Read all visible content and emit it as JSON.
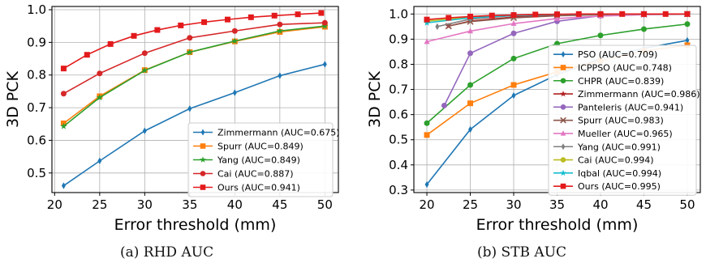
{
  "captions": [
    "(a)  RHD AUC",
    "(b)  STB AUC"
  ],
  "chart_data": [
    {
      "type": "line",
      "xlabel": "Error threshold (mm)",
      "ylabel": "3D PCK",
      "xlim": [
        19.7,
        51.5
      ],
      "ylim": [
        0.44,
        1.01
      ],
      "x_ticks": [
        20,
        25,
        30,
        35,
        40,
        45,
        50
      ],
      "y_ticks": [
        0.5,
        0.6,
        0.7,
        0.8,
        0.9,
        1.0
      ],
      "y_tick_labels": [
        "0.5",
        "0.6",
        "0.7",
        "0.8",
        "0.9",
        "1.0"
      ],
      "grid": true,
      "legend_position": "lower-right",
      "series": [
        {
          "name": "Zimmermann (AUC=0.675)",
          "color": "#1f77b4",
          "marker": "thin_diamond",
          "x": [
            21,
            25,
            30,
            35,
            40,
            45,
            50
          ],
          "y": [
            0.461,
            0.537,
            0.629,
            0.697,
            0.746,
            0.798,
            0.833
          ]
        },
        {
          "name": "Spurr (AUC=0.849)",
          "color": "#ff7f0e",
          "marker": "square",
          "x": [
            21,
            25,
            30,
            35,
            40,
            45,
            50
          ],
          "y": [
            0.652,
            0.735,
            0.815,
            0.87,
            0.903,
            0.932,
            0.948
          ]
        },
        {
          "name": "Yang (AUC=0.849)",
          "color": "#2ca02c",
          "marker": "star",
          "x": [
            21,
            25,
            30,
            35,
            40,
            45,
            50
          ],
          "y": [
            0.643,
            0.731,
            0.814,
            0.87,
            0.904,
            0.935,
            0.95
          ]
        },
        {
          "name": "Cai (AUC=0.887)",
          "color": "#d62728",
          "marker": "circle",
          "x": [
            21,
            25,
            30,
            35,
            40,
            45,
            50
          ],
          "y": [
            0.743,
            0.805,
            0.867,
            0.914,
            0.935,
            0.955,
            0.96
          ]
        },
        {
          "name": "Ours (AUC=0.941)",
          "color": "#e31a1c",
          "marker": "square",
          "x": [
            21,
            23.6,
            26.2,
            28.8,
            31.4,
            34,
            36.6,
            39.2,
            41.8,
            44.4,
            47,
            49.6
          ],
          "y": [
            0.82,
            0.862,
            0.895,
            0.92,
            0.938,
            0.952,
            0.962,
            0.97,
            0.977,
            0.982,
            0.986,
            0.99
          ]
        }
      ]
    },
    {
      "type": "line",
      "xlabel": "Error threshold (mm)",
      "ylabel": "3D PCK",
      "xlim": [
        18.5,
        51.5
      ],
      "ylim": [
        0.29,
        1.03
      ],
      "x_ticks": [
        20,
        25,
        30,
        35,
        40,
        45,
        50
      ],
      "y_ticks": [
        0.3,
        0.4,
        0.5,
        0.6,
        0.7,
        0.8,
        0.9,
        1.0
      ],
      "y_tick_labels": [
        "0.3",
        "0.4",
        "0.5",
        "0.6",
        "0.7",
        "0.8",
        "0.9",
        "1.0"
      ],
      "grid": true,
      "legend_position": "lower-right",
      "series": [
        {
          "name": "PSO (AUC=0.709)",
          "color": "#1f77b4",
          "marker": "thin_diamond",
          "x": [
            20,
            25,
            30,
            35,
            40,
            45,
            50
          ],
          "y": [
            0.322,
            0.541,
            0.676,
            0.759,
            0.823,
            0.864,
            0.895
          ]
        },
        {
          "name": "ICPPSO (AUC=0.748)",
          "color": "#ff7f0e",
          "marker": "square",
          "x": [
            20,
            25,
            30,
            35,
            40,
            45,
            50
          ],
          "y": [
            0.519,
            0.645,
            0.718,
            0.77,
            0.815,
            0.853,
            0.876
          ]
        },
        {
          "name": "CHPR (AUC=0.839)",
          "color": "#2ca02c",
          "marker": "circle",
          "x": [
            20,
            25,
            30,
            35,
            40,
            45,
            50
          ],
          "y": [
            0.566,
            0.718,
            0.823,
            0.882,
            0.915,
            0.94,
            0.96
          ]
        },
        {
          "name": "Zimmermann (AUC=0.986)",
          "color": "#b22222",
          "marker": "star",
          "x": [
            22.5,
            25,
            30,
            35,
            40,
            45,
            50
          ],
          "y": [
            0.952,
            0.972,
            0.988,
            0.995,
            0.998,
            0.999,
            1.0
          ]
        },
        {
          "name": "Panteleris (AUC=0.941)",
          "color": "#9467bd",
          "marker": "circle",
          "x": [
            22,
            25,
            30,
            35,
            40,
            45,
            50
          ],
          "y": [
            0.636,
            0.844,
            0.923,
            0.971,
            0.993,
            0.998,
            1.0
          ]
        },
        {
          "name": "Spurr (AUC=0.983)",
          "color": "#8c564b",
          "marker": "x",
          "x": [
            22.5,
            25,
            30,
            35,
            40,
            45,
            50
          ],
          "y": [
            0.952,
            0.97,
            0.985,
            0.993,
            0.997,
            0.999,
            1.0
          ]
        },
        {
          "name": "Mueller (AUC=0.965)",
          "color": "#e377c2",
          "marker": "triangle",
          "x": [
            20,
            25,
            30,
            35,
            40,
            45,
            50
          ],
          "y": [
            0.89,
            0.932,
            0.962,
            0.982,
            0.992,
            0.997,
            0.999
          ]
        },
        {
          "name": "Yang (AUC=0.991)",
          "color": "#7f7f7f",
          "marker": "thin_diamond",
          "x": [
            21.2,
            25,
            30,
            35,
            40,
            45,
            50
          ],
          "y": [
            0.95,
            0.98,
            0.994,
            0.998,
            1.0,
            1.0,
            1.0
          ]
        },
        {
          "name": "Cai (AUC=0.994)",
          "color": "#bcbd22",
          "marker": "circle",
          "x": [
            20,
            25,
            30,
            35,
            40,
            45,
            50
          ],
          "y": [
            0.972,
            0.988,
            0.995,
            0.998,
            1.0,
            1.0,
            1.0
          ]
        },
        {
          "name": "Iqbal (AUC=0.994)",
          "color": "#17becf",
          "marker": "star",
          "x": [
            20,
            25,
            30,
            35,
            40,
            45,
            50
          ],
          "y": [
            0.965,
            0.985,
            0.994,
            0.998,
            1.0,
            1.0,
            1.0
          ]
        },
        {
          "name": "Ours (AUC=0.995)",
          "color": "#e31a1c",
          "marker": "square",
          "x": [
            20,
            22.5,
            25,
            27.5,
            30,
            32.5,
            35,
            37.5,
            40,
            42.5,
            45,
            47.5,
            50
          ],
          "y": [
            0.978,
            0.985,
            0.99,
            0.994,
            0.996,
            0.998,
            0.999,
            1.0,
            1.0,
            1.0,
            1.0,
            1.0,
            1.0
          ]
        }
      ]
    }
  ]
}
